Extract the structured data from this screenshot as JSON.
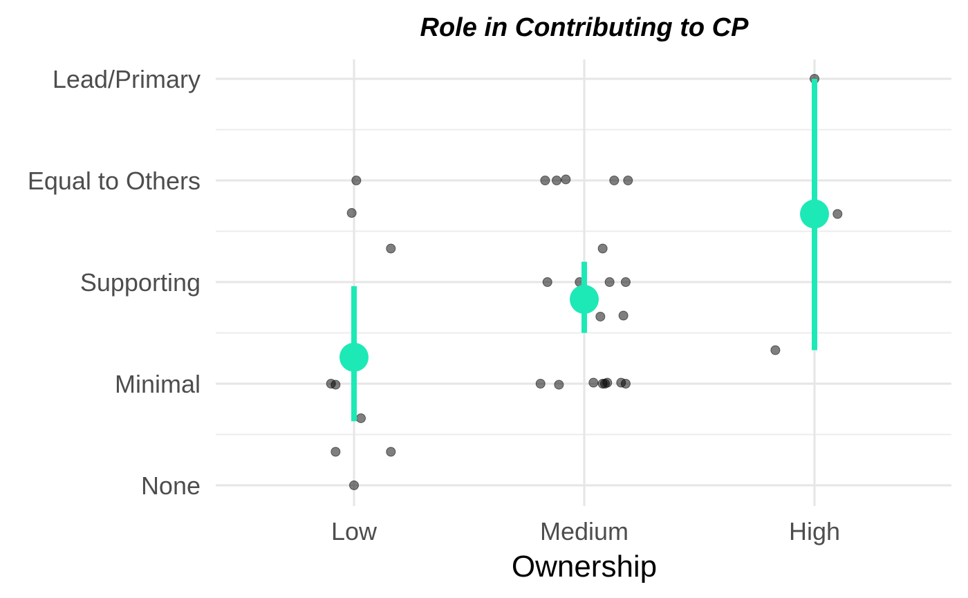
{
  "chart_data": {
    "type": "scatter",
    "title": "Role in Contributing to CP",
    "xlabel": "Ownership",
    "ylabel": "",
    "categories": [
      "Low",
      "Medium",
      "High"
    ],
    "y_levels": [
      "None",
      "Minimal",
      "Supporting",
      "Equal to Others",
      "Lead/Primary"
    ],
    "ylim": [
      -0.2,
      4.2
    ],
    "grid": true,
    "colors": {
      "points": "#000000",
      "summary": "#1de9b6",
      "grid": "#e6e6e6"
    },
    "points": [
      {
        "group": "Low",
        "x": 1.01,
        "y": 3.0
      },
      {
        "group": "Low",
        "x": 0.99,
        "y": 2.68
      },
      {
        "group": "Low",
        "x": 1.16,
        "y": 2.33
      },
      {
        "group": "Low",
        "x": 0.9,
        "y": 1.0
      },
      {
        "group": "Low",
        "x": 0.92,
        "y": 0.99
      },
      {
        "group": "Low",
        "x": 1.03,
        "y": 0.66
      },
      {
        "group": "Low",
        "x": 0.92,
        "y": 0.33
      },
      {
        "group": "Low",
        "x": 1.16,
        "y": 0.33
      },
      {
        "group": "Low",
        "x": 1.0,
        "y": 0.0
      },
      {
        "group": "Medium",
        "x": 1.83,
        "y": 3.0
      },
      {
        "group": "Medium",
        "x": 1.88,
        "y": 3.0
      },
      {
        "group": "Medium",
        "x": 1.92,
        "y": 3.01
      },
      {
        "group": "Medium",
        "x": 2.13,
        "y": 3.0
      },
      {
        "group": "Medium",
        "x": 2.19,
        "y": 3.0
      },
      {
        "group": "Medium",
        "x": 2.08,
        "y": 2.33
      },
      {
        "group": "Medium",
        "x": 1.84,
        "y": 2.0
      },
      {
        "group": "Medium",
        "x": 1.98,
        "y": 2.0
      },
      {
        "group": "Medium",
        "x": 2.11,
        "y": 2.0
      },
      {
        "group": "Medium",
        "x": 2.18,
        "y": 2.0
      },
      {
        "group": "Medium",
        "x": 2.07,
        "y": 1.66
      },
      {
        "group": "Medium",
        "x": 2.17,
        "y": 1.67
      },
      {
        "group": "Medium",
        "x": 1.81,
        "y": 1.0
      },
      {
        "group": "Medium",
        "x": 1.89,
        "y": 0.99
      },
      {
        "group": "Medium",
        "x": 2.04,
        "y": 1.01
      },
      {
        "group": "Medium",
        "x": 2.08,
        "y": 1.0
      },
      {
        "group": "Medium",
        "x": 2.09,
        "y": 1.0
      },
      {
        "group": "Medium",
        "x": 2.1,
        "y": 1.01
      },
      {
        "group": "Medium",
        "x": 2.16,
        "y": 1.01
      },
      {
        "group": "Medium",
        "x": 2.18,
        "y": 1.0
      },
      {
        "group": "High",
        "x": 3.0,
        "y": 4.0
      },
      {
        "group": "High",
        "x": 3.1,
        "y": 2.67
      },
      {
        "group": "High",
        "x": 2.83,
        "y": 1.33
      }
    ],
    "summary": [
      {
        "group": "Low",
        "x": 1,
        "mean": 1.26,
        "low": 0.63,
        "high": 1.96
      },
      {
        "group": "Medium",
        "x": 2,
        "mean": 1.83,
        "low": 1.5,
        "high": 2.2
      },
      {
        "group": "High",
        "x": 3,
        "mean": 2.67,
        "low": 1.33,
        "high": 4.0
      }
    ]
  }
}
